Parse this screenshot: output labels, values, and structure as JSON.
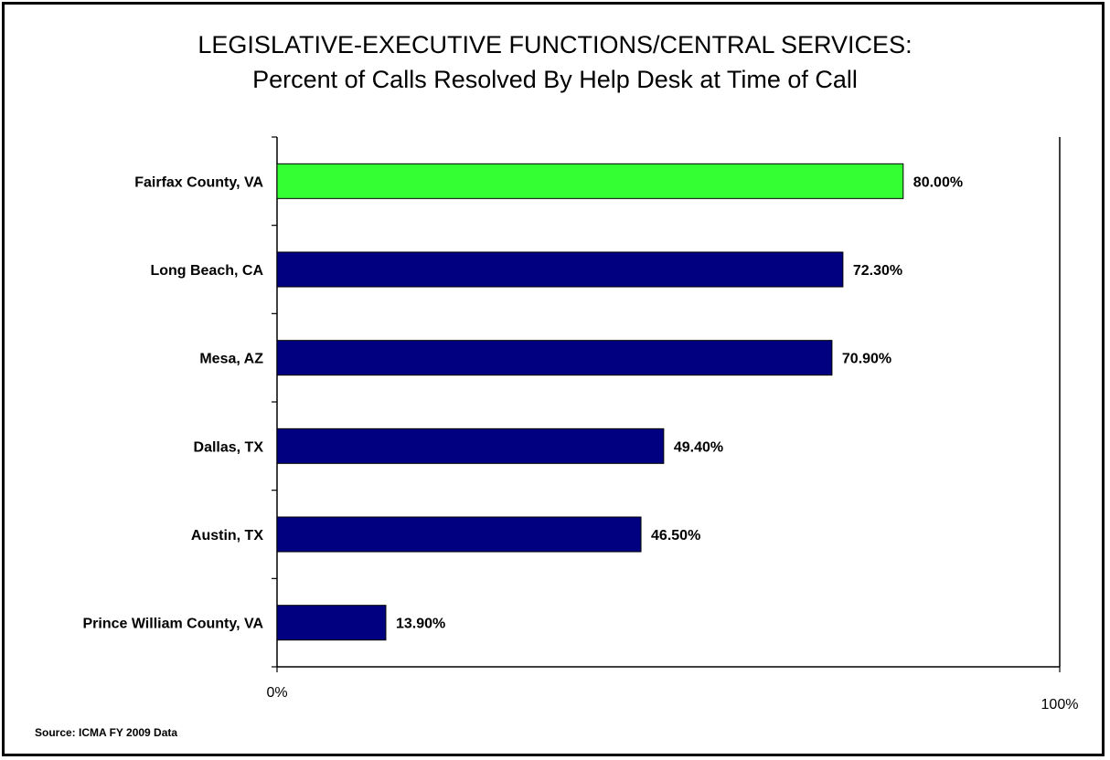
{
  "title_line1": "LEGISLATIVE-EXECUTIVE FUNCTIONS/CENTRAL SERVICES:",
  "title_line2": "Percent of Calls Resolved By Help Desk at Time of Call",
  "source": "Source: ICMA FY 2009 Data",
  "chart_data": {
    "type": "bar",
    "orientation": "horizontal",
    "categories": [
      "Fairfax County, VA",
      "Long Beach, CA",
      "Mesa, AZ",
      "Dallas, TX",
      "Austin, TX",
      "Prince William County, VA"
    ],
    "values": [
      80.0,
      72.3,
      70.9,
      49.4,
      46.5,
      13.9
    ],
    "value_labels": [
      "80.00%",
      "72.30%",
      "70.90%",
      "49.40%",
      "46.50%",
      "13.90%"
    ],
    "xlim": [
      0,
      100
    ],
    "x_tick_labels": [
      "0%",
      "100%"
    ],
    "grid": false,
    "colors": {
      "highlight": "#33ff33",
      "default": "#000080"
    },
    "highlight_index": 0
  }
}
